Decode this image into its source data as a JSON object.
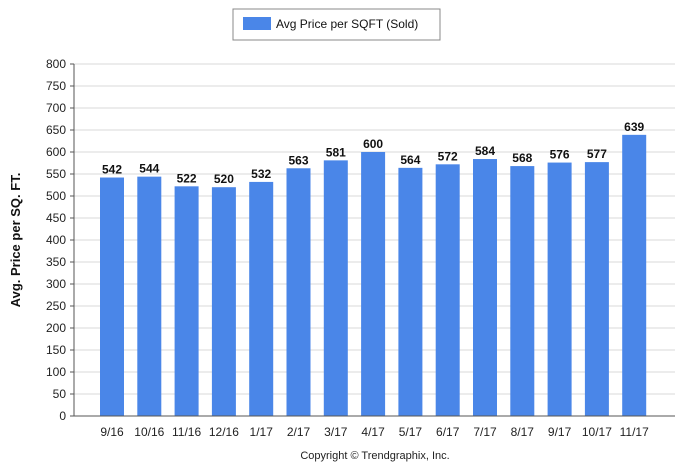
{
  "chart_data": {
    "type": "bar",
    "categories": [
      "9/16",
      "10/16",
      "11/16",
      "12/16",
      "1/17",
      "2/17",
      "3/17",
      "4/17",
      "5/17",
      "6/17",
      "7/17",
      "8/17",
      "9/17",
      "10/17",
      "11/17"
    ],
    "series": [
      {
        "name": "Avg Price per SQFT (Sold)",
        "values": [
          542,
          544,
          522,
          520,
          532,
          563,
          581,
          600,
          564,
          572,
          584,
          568,
          576,
          577,
          639
        ]
      }
    ],
    "ylabel": "Avg. Price per SQ. FT.",
    "xlabel": "",
    "ylim": [
      0,
      800
    ],
    "yticks": [
      0,
      50,
      100,
      150,
      200,
      250,
      300,
      350,
      400,
      450,
      500,
      550,
      600,
      650,
      700,
      750,
      800
    ],
    "grid": true,
    "legend_position": "top-center",
    "bar_color": "#4a86e8",
    "footer": "Copyright © Trendgraphix, Inc."
  }
}
